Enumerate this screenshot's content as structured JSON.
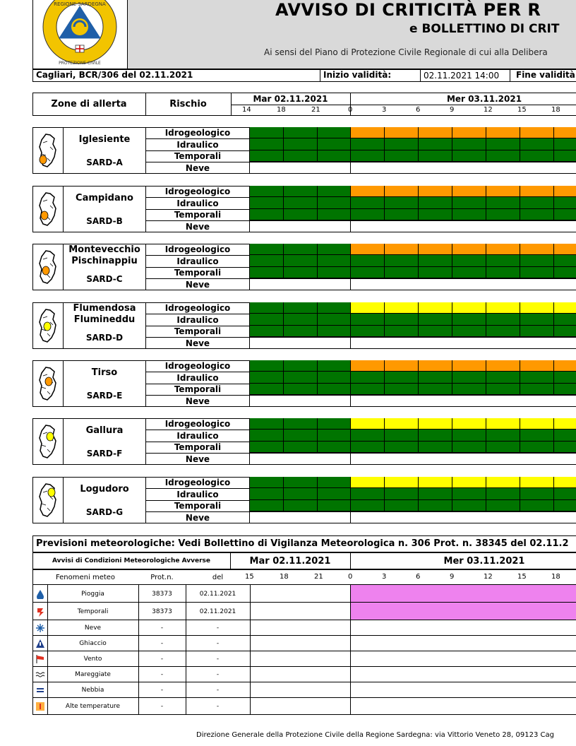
{
  "header": {
    "title": "AVVISO DI CRITICITÀ PER R",
    "subtitle": "e BOLLETTINO DI CRIT",
    "description": "Ai sensi del Piano di Protezione Civile Regionale di cui alla Delibera",
    "logo": {
      "ring_text_top": "REGIONE SARDEGNA",
      "ring_text_bottom": "PROTEZIONE CIVILE"
    }
  },
  "info": {
    "bulletin_id": "Cagliari, BCR/306 del 02.11.2021",
    "start_label": "Inizio validità:",
    "start_value": "02.11.2021 14:00",
    "end_label": "Fine validità"
  },
  "grid_header": {
    "zones_label": "Zone di allerta",
    "risk_label": "Rischio",
    "day1": "Mar 02.11.2021",
    "day2": "Mer 03.11.2021",
    "day1_hours": [
      "14",
      "18",
      "21"
    ],
    "day2_hours": [
      "0",
      "3",
      "6",
      "9",
      "12",
      "15",
      "18"
    ]
  },
  "colors": {
    "green": "#007400",
    "orange": "#ff9900",
    "yellow": "#ffff00",
    "violet": "#ee82ee",
    "white": "#ffffff",
    "header_gray": "#d9d9d9"
  },
  "risk_types": [
    "Idrogeologico",
    "Idraulico",
    "Temporali",
    "Neve"
  ],
  "zones": [
    {
      "name_lines": [
        "Iglesiente"
      ],
      "code": "SARD-A",
      "levels": {
        "idrogeologico": "orange",
        "idraulico": "green",
        "temporali": "green"
      }
    },
    {
      "name_lines": [
        "Campidano"
      ],
      "code": "SARD-B",
      "levels": {
        "idrogeologico": "orange",
        "idraulico": "green",
        "temporali": "green"
      }
    },
    {
      "name_lines": [
        "Montevecchio",
        "Pischinappiu"
      ],
      "code": "SARD-C",
      "levels": {
        "idrogeologico": "orange",
        "idraulico": "green",
        "temporali": "green"
      }
    },
    {
      "name_lines": [
        "Flumendosa",
        "Flumineddu"
      ],
      "code": "SARD-D",
      "levels": {
        "idrogeologico": "yellow",
        "idraulico": "green",
        "temporali": "green"
      }
    },
    {
      "name_lines": [
        "Tirso"
      ],
      "code": "SARD-E",
      "levels": {
        "idrogeologico": "orange",
        "idraulico": "green",
        "temporali": "green"
      }
    },
    {
      "name_lines": [
        "Gallura"
      ],
      "code": "SARD-F",
      "levels": {
        "idrogeologico": "yellow",
        "idraulico": "green",
        "temporali": "green"
      }
    },
    {
      "name_lines": [
        "Logudoro"
      ],
      "code": "SARD-G",
      "levels": {
        "idrogeologico": "yellow",
        "idraulico": "green",
        "temporali": "green"
      }
    }
  ],
  "meteo": {
    "title": "Previsioni meteorologiche: Vedi Bollettino di Vigilanza Meteorologica n. 306 Prot. n. 38345 del 02.11.2",
    "avvisi_label": "Avvisi di Condizioni Meteorologiche Avverse",
    "day1": "Mar 02.11.2021",
    "day2": "Mer 03.11.2021",
    "col_fenomeni": "Fenomeni meteo",
    "col_prot": "Prot.n.",
    "col_del": "del",
    "day1_hours": [
      "15",
      "18",
      "21"
    ],
    "day2_hours": [
      "0",
      "3",
      "6",
      "9",
      "12",
      "15",
      "18"
    ],
    "rows": [
      {
        "name": "Pioggia",
        "icon": "raindrop-icon",
        "prot": "38373",
        "del": "02.11.2021",
        "active": true
      },
      {
        "name": "Temporali",
        "icon": "thunderstorm-icon",
        "prot": "38373",
        "del": "02.11.2021",
        "active": true
      },
      {
        "name": "Neve",
        "icon": "snowflake-icon",
        "prot": "-",
        "del": "-",
        "active": false
      },
      {
        "name": "Ghiaccio",
        "icon": "ice-warning-icon",
        "prot": "-",
        "del": "-",
        "active": false
      },
      {
        "name": "Vento",
        "icon": "windsock-icon",
        "prot": "-",
        "del": "-",
        "active": false
      },
      {
        "name": "Mareggiate",
        "icon": "waves-icon",
        "prot": "-",
        "del": "-",
        "active": false
      },
      {
        "name": "Nebbia",
        "icon": "fog-icon",
        "prot": "-",
        "del": "-",
        "active": false
      },
      {
        "name": "Alte temperature",
        "icon": "thermometer-icon",
        "prot": "-",
        "del": "-",
        "active": false
      }
    ]
  },
  "footer": "Direzione Generale della Protezione Civile della Regione Sardegna: via Vittorio Veneto 28, 09123 Cag"
}
